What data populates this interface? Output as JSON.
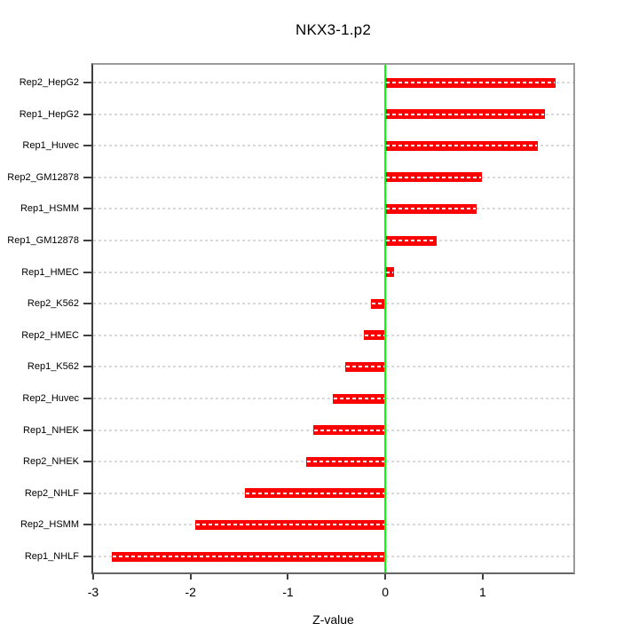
{
  "chart_data": {
    "type": "bar",
    "orientation": "horizontal",
    "title": "NKX3-1.p2",
    "xlabel": "Z-value",
    "ylabel": "",
    "categories": [
      "Rep2_HepG2",
      "Rep1_HepG2",
      "Rep1_Huvec",
      "Rep2_GM12878",
      "Rep1_HSMM",
      "Rep1_GM12878",
      "Rep1_HMEC",
      "Rep2_K562",
      "Rep2_HMEC",
      "Rep1_K562",
      "Rep2_Huvec",
      "Rep1_NHEK",
      "Rep2_NHEK",
      "Rep2_NHLF",
      "Rep2_HSMM",
      "Rep1_NHLF"
    ],
    "values": [
      1.75,
      1.64,
      1.57,
      0.99,
      0.94,
      0.53,
      0.09,
      -0.15,
      -0.22,
      -0.41,
      -0.54,
      -0.74,
      -0.81,
      -1.44,
      -1.95,
      -2.81
    ],
    "x_ticks": [
      "-3",
      "-2",
      "-1",
      "0",
      "1"
    ],
    "x_tick_values": [
      -3,
      -2,
      -1,
      0,
      1
    ],
    "xlim": [
      -3.0,
      1.93
    ],
    "bar_color": "#ff0000",
    "zero_line_color": "#00ff00",
    "grid": {
      "style": "dashed",
      "direction": "horizontal",
      "color": "#d9d9d9"
    },
    "legend": "none"
  }
}
